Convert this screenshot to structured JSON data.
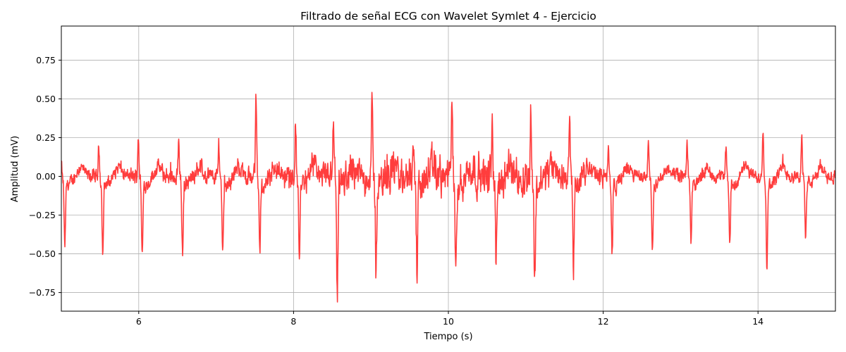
{
  "chart_data": {
    "type": "line",
    "title": "Filtrado de señal ECG con Wavelet Symlet 4 - Ejercicio",
    "xlabel": "Tiempo (s)",
    "ylabel": "Amplitud (mV)",
    "xlim": [
      5.0,
      15.0
    ],
    "ylim": [
      -0.87,
      0.97
    ],
    "xticks": [
      6,
      8,
      10,
      12,
      14
    ],
    "xtick_labels": [
      "6",
      "8",
      "10",
      "12",
      "14"
    ],
    "yticks": [
      -0.75,
      -0.5,
      -0.25,
      0.0,
      0.25,
      0.5,
      0.75
    ],
    "ytick_labels": [
      "−0.75",
      "−0.50",
      "−0.25",
      "0.00",
      "0.25",
      "0.50",
      "0.75"
    ],
    "grid": true,
    "series": [
      {
        "color": "#ff3333",
        "beats": [
          {
            "t": 5.03,
            "r": 0.13,
            "s": -0.42
          },
          {
            "t": 5.52,
            "r": 0.2,
            "s": -0.46
          },
          {
            "t": 6.03,
            "r": 0.27,
            "s": -0.48
          },
          {
            "t": 6.55,
            "r": 0.24,
            "s": -0.46
          },
          {
            "t": 7.07,
            "r": 0.23,
            "s": -0.46
          },
          {
            "t": 7.55,
            "r": 0.5,
            "s": -0.45
          },
          {
            "t": 8.06,
            "r": 0.33,
            "s": -0.49
          },
          {
            "t": 8.55,
            "r": 0.33,
            "s": -0.78
          },
          {
            "t": 9.05,
            "r": 0.46,
            "s": -0.53
          },
          {
            "t": 9.58,
            "r": 0.32,
            "s": -0.59
          },
          {
            "t": 10.08,
            "r": 0.47,
            "s": -0.5
          },
          {
            "t": 10.6,
            "r": 0.35,
            "s": -0.52
          },
          {
            "t": 11.1,
            "r": 0.44,
            "s": -0.7
          },
          {
            "t": 11.6,
            "r": 0.41,
            "s": -0.6
          },
          {
            "t": 12.1,
            "r": 0.21,
            "s": -0.46
          },
          {
            "t": 12.62,
            "r": 0.26,
            "s": -0.42
          },
          {
            "t": 13.12,
            "r": 0.2,
            "s": -0.38
          },
          {
            "t": 13.62,
            "r": 0.22,
            "s": -0.41
          },
          {
            "t": 14.1,
            "r": 0.32,
            "s": -0.55
          },
          {
            "t": 14.6,
            "r": 0.28,
            "s": -0.37
          }
        ],
        "noise_profile": [
          {
            "t": 5.0,
            "amp": 0.05
          },
          {
            "t": 7.4,
            "amp": 0.07
          },
          {
            "t": 8.2,
            "amp": 0.1
          },
          {
            "t": 9.0,
            "amp": 0.14
          },
          {
            "t": 11.0,
            "amp": 0.15
          },
          {
            "t": 11.8,
            "amp": 0.09
          },
          {
            "t": 12.4,
            "amp": 0.05
          },
          {
            "t": 15.0,
            "amp": 0.05
          }
        ]
      }
    ]
  }
}
